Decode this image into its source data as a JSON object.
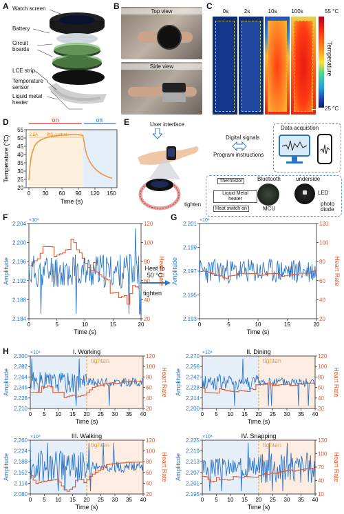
{
  "panel_labels": {
    "A": "A",
    "B": "B",
    "C": "C",
    "D": "D",
    "E": "E",
    "F": "F",
    "G": "G",
    "H": "H"
  },
  "panelA": {
    "labels": [
      "Watch screen",
      "Battery",
      "Circuit boards",
      "LCE strip",
      "Temperature sensor",
      "Liquid metal heater"
    ]
  },
  "panelB": {
    "top": "Top view",
    "side": "Side view"
  },
  "panelC": {
    "times": [
      "0s",
      "2s",
      "10s",
      "100s"
    ],
    "colorbar_top": "55 °C",
    "colorbar_bottom": "25 °C",
    "colorbar_label": "Temperature"
  },
  "panelE": {
    "user_interface": "User interface",
    "digital_signals": "Digital signals",
    "program_instructions": "Program instructions",
    "data_acquisition": "Data acquistion",
    "thermistor": "Thermistor",
    "heater": "Liquid Metal heater",
    "switch": "Heat switch on",
    "bluetooth": "Bluetooth",
    "underside": "underside",
    "mcu": "MCU",
    "led": "LED",
    "photodiode": "photo diode",
    "tighten": "tighten"
  },
  "arrow_FG": {
    "line1": "Heat to",
    "line2": "50 °C",
    "line3": "tighten"
  },
  "chart_data": [
    {
      "panel": "D",
      "type": "line",
      "xlabel": "Time (s)",
      "ylabel": "Temperature (°C)",
      "xlim": [
        -5,
        160
      ],
      "ylim": [
        20,
        55
      ],
      "xticks": [
        0,
        30,
        60,
        90,
        120,
        150
      ],
      "yticks": [
        20,
        25,
        30,
        35,
        40,
        45,
        50,
        55
      ],
      "annotations": {
        "on": "on",
        "off": "off",
        "t": "2.5A",
        "pid": "PID control"
      },
      "series": [
        {
          "x": [
            0,
            2,
            4,
            6,
            8,
            10,
            13,
            16,
            20,
            25,
            30,
            35,
            40,
            45,
            50,
            55,
            60,
            65,
            70,
            75,
            80,
            85,
            90,
            95,
            98,
            100,
            102,
            105,
            110,
            115,
            120,
            125,
            130,
            135,
            140,
            145,
            150
          ],
          "y": [
            25,
            33,
            38,
            41,
            43,
            45,
            46.5,
            47.5,
            48.5,
            49.3,
            50,
            50.5,
            50.9,
            51.1,
            51.3,
            51.5,
            51.7,
            51.8,
            51.9,
            52,
            52,
            52,
            52,
            51.8,
            51.5,
            48,
            44,
            40,
            36,
            33.5,
            31.5,
            30,
            28.8,
            27.8,
            27,
            26.3,
            25.8
          ]
        }
      ]
    },
    {
      "panel": "F",
      "type": "line",
      "xlabel": "Time (s)",
      "ylabel": "Amplitude",
      "y2label": "Heart Rate",
      "exponent": "×10⁴",
      "xlim": [
        0,
        20
      ],
      "ylim": [
        2.184,
        2.204
      ],
      "y2lim": [
        20,
        120
      ],
      "xticks": [
        0,
        5,
        10,
        15,
        20
      ],
      "yticks": [
        2.184,
        2.188,
        2.192,
        2.196,
        2.2,
        2.204
      ],
      "y2ticks": [
        20,
        40,
        60,
        80,
        100,
        120
      ]
    },
    {
      "panel": "G",
      "type": "line",
      "xlabel": "Time (s)",
      "ylabel": "Amplitude",
      "y2label": "Heart Rate",
      "exponent": "×10⁴",
      "xlim": [
        0,
        20
      ],
      "ylim": [
        2.193,
        2.201
      ],
      "y2lim": [
        20,
        120
      ],
      "xticks": [
        0,
        5,
        10,
        15,
        20
      ],
      "yticks": [
        2.193,
        2.195,
        2.197,
        2.199,
        2.201
      ],
      "y2ticks": [
        20,
        40,
        60,
        80,
        100,
        120
      ]
    },
    {
      "panel": "H-I",
      "type": "line",
      "title": "I. Working",
      "annotation": "tighten",
      "xlabel": "Time (s)",
      "ylabel": "Amplitude",
      "y2label": "Heart Rate",
      "exponent": "×10⁴",
      "xlim": [
        0,
        40
      ],
      "ylim": [
        2.21,
        2.3
      ],
      "y2lim": [
        20,
        120
      ],
      "xticks": [
        0,
        5,
        10,
        15,
        20,
        25,
        30,
        35,
        40
      ],
      "yticks": [
        2.21,
        2.228,
        2.246,
        2.264,
        2.282,
        2.3
      ],
      "y2ticks": [
        20,
        40,
        60,
        80,
        100,
        120
      ]
    },
    {
      "panel": "H-II",
      "type": "line",
      "title": "II. Dining",
      "annotation": "tighten",
      "xlabel": "Time (s)",
      "ylabel": "Amplitude",
      "y2label": "Heart Rate",
      "exponent": "×10⁴",
      "xlim": [
        0,
        40
      ],
      "ylim": [
        2.2,
        2.27
      ],
      "y2lim": [
        20,
        120
      ],
      "xticks": [
        0,
        5,
        10,
        15,
        20,
        25,
        30,
        35,
        40
      ],
      "yticks": [
        2.2,
        2.214,
        2.228,
        2.242,
        2.256,
        2.27
      ],
      "y2ticks": [
        20,
        40,
        60,
        80,
        100,
        120
      ]
    },
    {
      "panel": "H-III",
      "type": "line",
      "title": "III. Walking",
      "annotation": "tighten",
      "xlabel": "Time (s)",
      "ylabel": "Amplitude",
      "y2label": "Heart Rate",
      "exponent": "×10⁴",
      "xlim": [
        0,
        40
      ],
      "ylim": [
        2.08,
        2.26
      ],
      "y2lim": [
        20,
        120
      ],
      "xticks": [
        0,
        5,
        10,
        15,
        20,
        25,
        30,
        35,
        40
      ],
      "yticks": [
        2.08,
        2.116,
        2.152,
        2.188,
        2.224,
        2.26
      ],
      "y2ticks": [
        20,
        40,
        60,
        80,
        100,
        120
      ]
    },
    {
      "panel": "H-IV",
      "type": "line",
      "title": "IV. Snapping",
      "annotation": "tighten",
      "xlabel": "Time (s)",
      "ylabel": "Amplitude",
      "y2label": "Heart Rate",
      "exponent": "×10⁴",
      "xlim": [
        0,
        40
      ],
      "ylim": [
        2.195,
        2.225
      ],
      "y2lim": [
        10,
        130
      ],
      "xticks": [
        0,
        5,
        10,
        15,
        20,
        25,
        30,
        35,
        40
      ],
      "yticks": [
        2.195,
        2.201,
        2.207,
        2.213,
        2.219,
        2.225
      ],
      "y2ticks": [
        10,
        40,
        70,
        100,
        130
      ]
    }
  ]
}
